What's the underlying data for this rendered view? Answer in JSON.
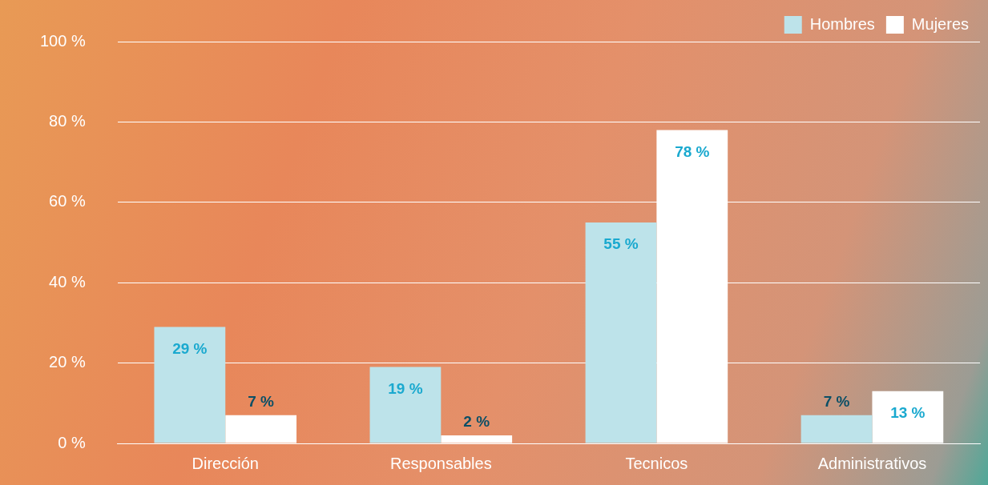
{
  "chart_data": {
    "type": "bar",
    "categories": [
      "Dirección",
      "Responsables",
      "Tecnicos",
      "Administrativos"
    ],
    "series": [
      {
        "name": "Hombres",
        "color": "#bde3ea",
        "values": [
          29,
          19,
          55,
          7
        ],
        "value_labels": [
          "29 %",
          "19 %",
          "55 %",
          "7 %"
        ]
      },
      {
        "name": "Mujeres",
        "color": "#ffffff",
        "values": [
          7,
          2,
          78,
          13
        ],
        "value_labels": [
          "7 %",
          "2 %",
          "78 %",
          "13 %"
        ]
      }
    ],
    "ylim": [
      0,
      100
    ],
    "yticks": [
      {
        "value": 0,
        "label": "0 %"
      },
      {
        "value": 20,
        "label": "20 %"
      },
      {
        "value": 40,
        "label": "40 %"
      },
      {
        "value": 60,
        "label": "60 %"
      },
      {
        "value": 80,
        "label": "80 %"
      },
      {
        "value": 100,
        "label": "100 %"
      }
    ],
    "grid": "y",
    "legend": "top right"
  }
}
